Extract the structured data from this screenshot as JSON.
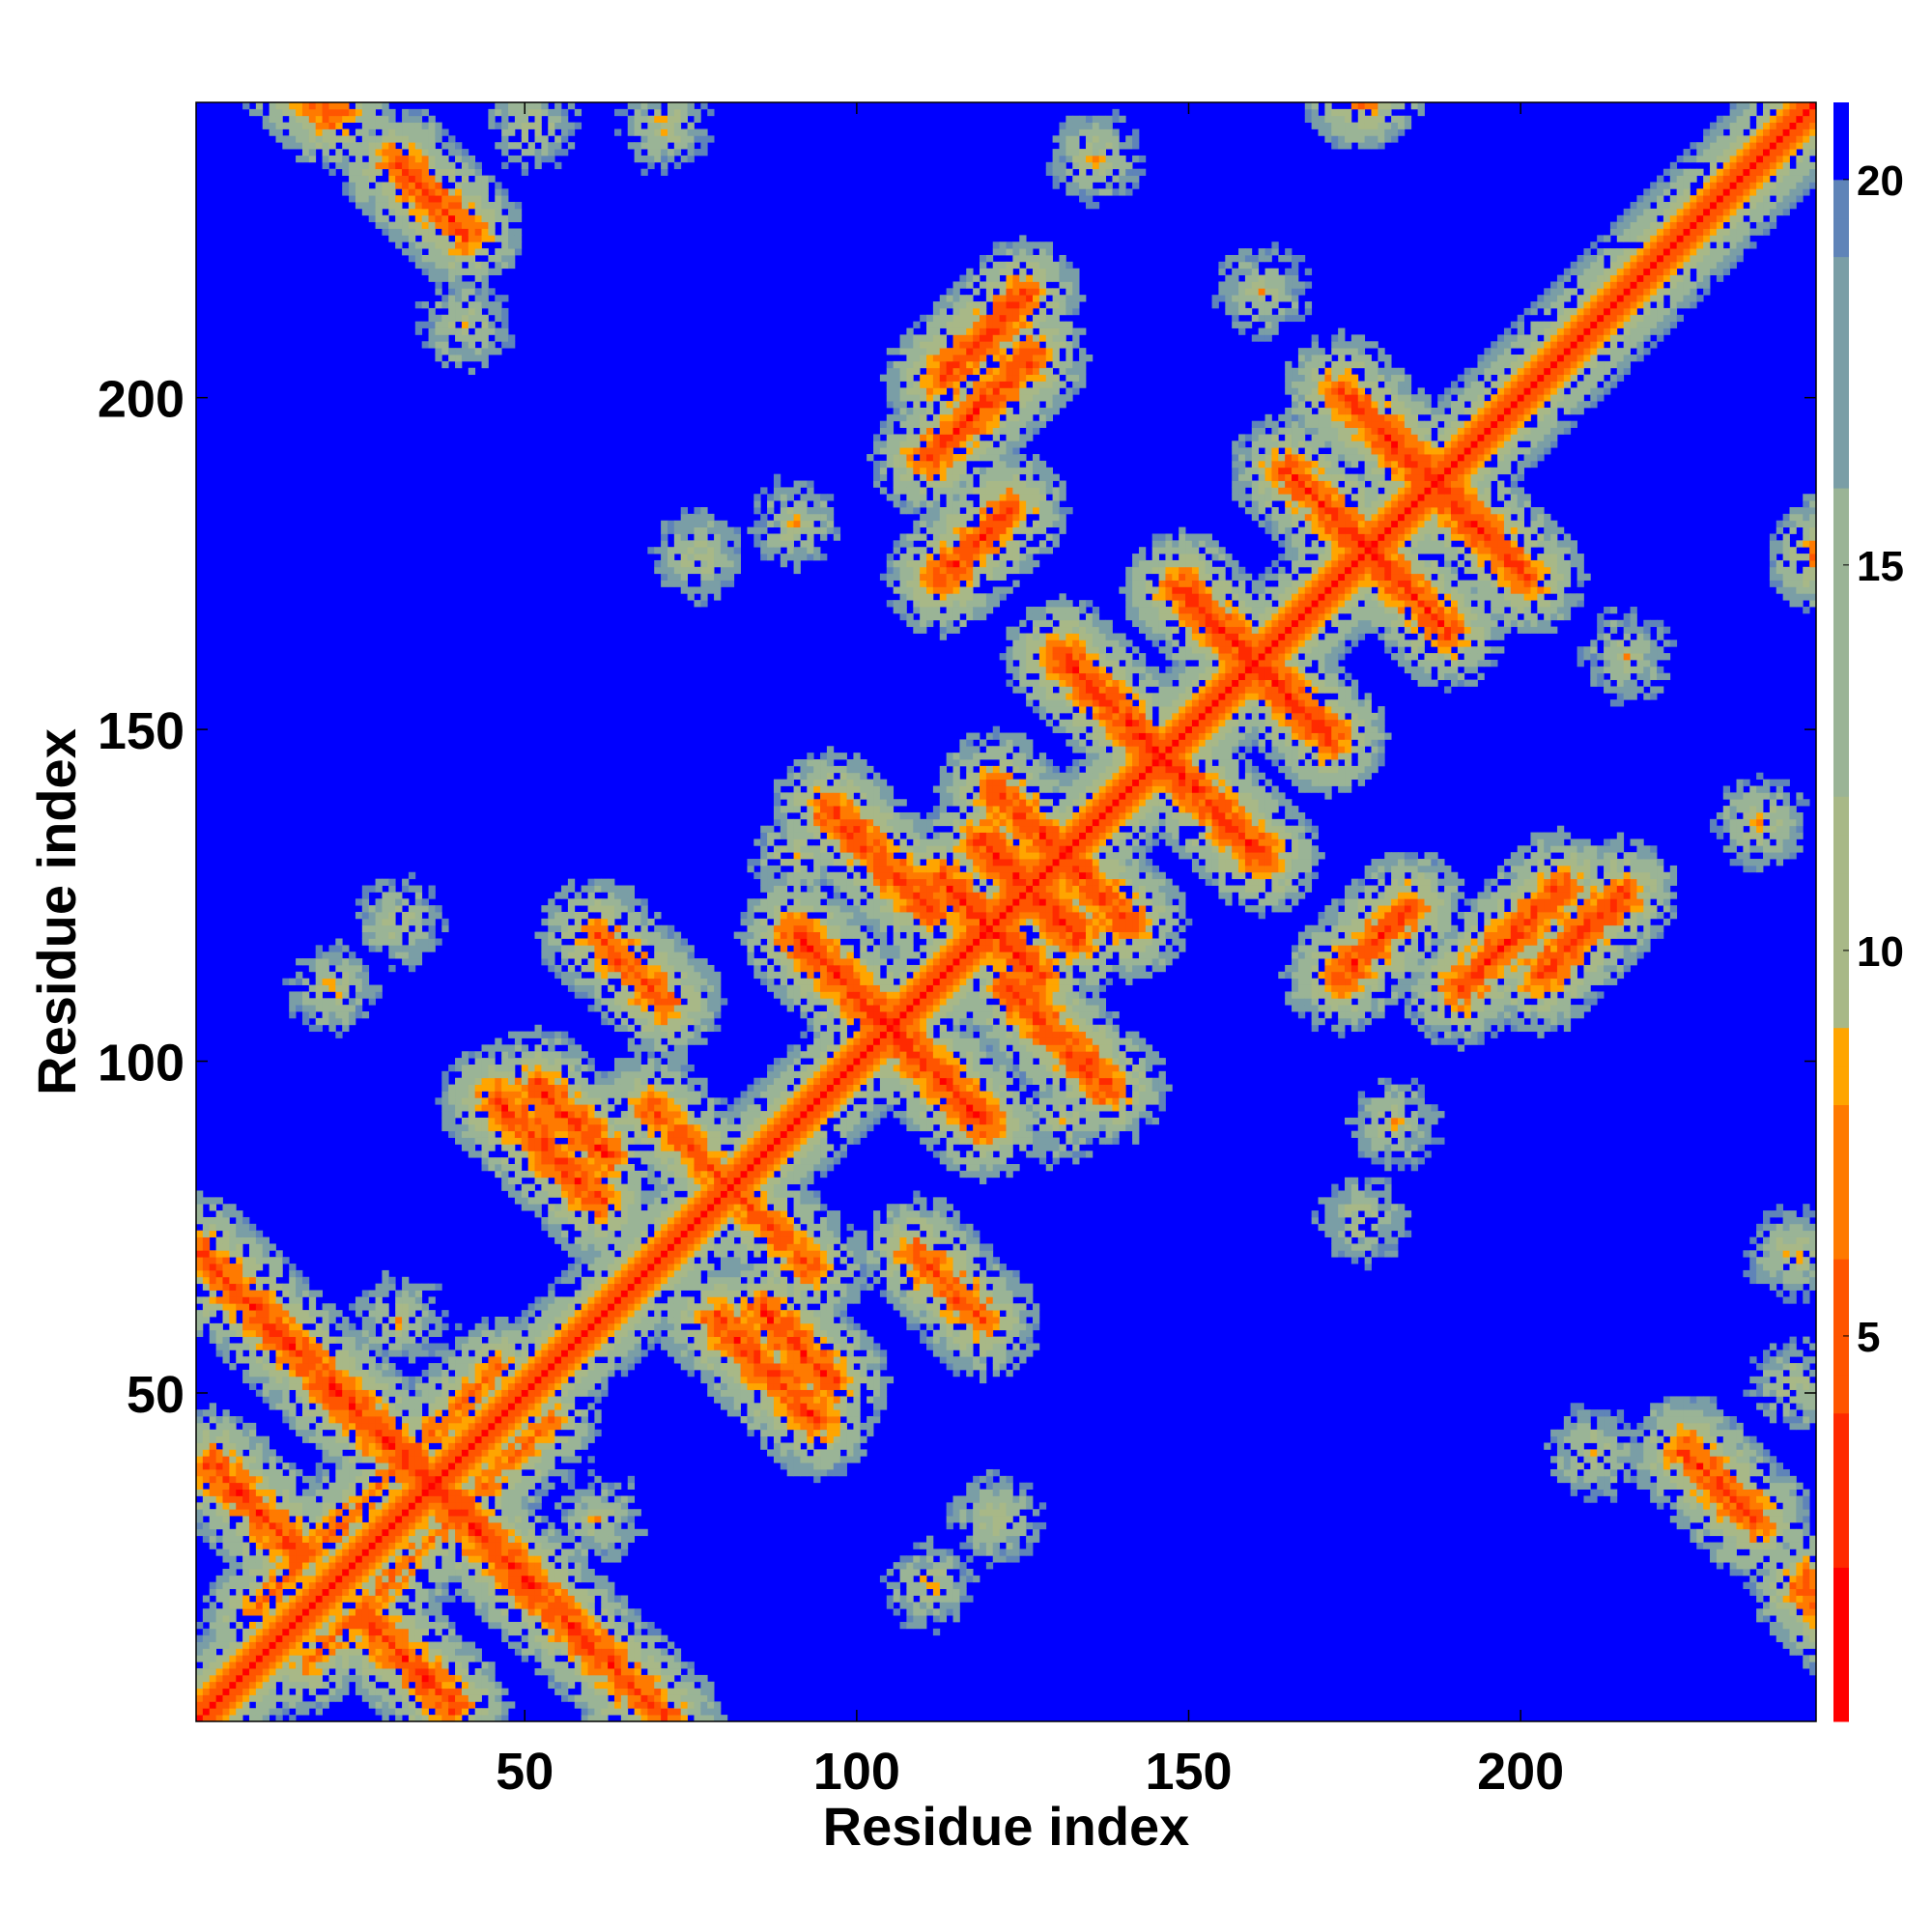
{
  "chart_data": {
    "type": "heatmap",
    "description_kind": "residue contact distance map",
    "n_residues": 244,
    "xlabel": "Residue index",
    "ylabel": "Residue index",
    "xticks": [
      50,
      100,
      150,
      200
    ],
    "yticks": [
      50,
      100,
      150,
      200
    ],
    "xlim": [
      1,
      244
    ],
    "ylim": [
      1,
      244
    ],
    "colorbar": {
      "ticks": [
        5,
        10,
        15,
        20
      ],
      "range": [
        0,
        21
      ],
      "saturate_above": 20,
      "stops": [
        {
          "value": 0,
          "color": "#ff0000"
        },
        {
          "value": 2,
          "color": "#ff2a00"
        },
        {
          "value": 4,
          "color": "#ff5500"
        },
        {
          "value": 6,
          "color": "#ff7a00"
        },
        {
          "value": 8,
          "color": "#ffa500"
        },
        {
          "value": 9,
          "color": "#a8b887"
        },
        {
          "value": 12,
          "color": "#9ab496"
        },
        {
          "value": 16,
          "color": "#7a9ea6"
        },
        {
          "value": 19,
          "color": "#5f84b8"
        },
        {
          "value": 20,
          "color": "#0000ff"
        }
      ]
    },
    "background_value": 21,
    "diagonal_value": 0,
    "bands": [
      {
        "type": "anti",
        "sum": 262,
        "from": 8,
        "to": 20,
        "min": 3.5
      },
      {
        "type": "anti",
        "sum": 264,
        "from": 30,
        "to": 40,
        "min": 3.5
      },
      {
        "type": "par",
        "diff": 8,
        "from": 8,
        "to": 45,
        "min": 6
      },
      {
        "type": "anti",
        "sum": 70,
        "from": 0,
        "to": 50,
        "min": 3.5
      },
      {
        "type": "anti",
        "sum": 40,
        "from": 25,
        "to": 38,
        "min": 3.5
      },
      {
        "type": "anti",
        "sum": 138,
        "from": 45,
        "to": 60,
        "min": 3.5
      },
      {
        "type": "anti",
        "sum": 146,
        "from": 85,
        "to": 95,
        "min": 3.5
      },
      {
        "type": "anti",
        "sum": 160,
        "from": 68,
        "to": 92,
        "min": 5
      },
      {
        "type": "anti",
        "sum": 208,
        "from": 90,
        "to": 118,
        "min": 3.5
      },
      {
        "type": "anti",
        "sum": 232,
        "from": 95,
        "to": 110,
        "min": 3.5
      },
      {
        "type": "anti",
        "sum": 238,
        "from": 112,
        "to": 126,
        "min": 3.5
      },
      {
        "type": "anti",
        "sum": 250,
        "from": 118,
        "to": 132,
        "min": 3.5
      },
      {
        "type": "anti",
        "sum": 260,
        "from": 128,
        "to": 140,
        "min": 3.5
      },
      {
        "type": "anti",
        "sum": 290,
        "from": 130,
        "to": 160,
        "min": 3.5
      },
      {
        "type": "anti",
        "sum": 318,
        "from": 148,
        "to": 170,
        "min": 3.5
      },
      {
        "type": "anti",
        "sum": 352,
        "from": 170,
        "to": 188,
        "min": 3.5
      },
      {
        "type": "anti",
        "sum": 372,
        "from": 178,
        "to": 200,
        "min": 3.5
      },
      {
        "type": "par",
        "diff": 80,
        "from": 110,
        "to": 125,
        "min": 3.5
      },
      {
        "type": "par",
        "diff": 60,
        "from": 112,
        "to": 122,
        "min": 3.5
      },
      {
        "type": "par",
        "diff": 90,
        "from": 112,
        "to": 124,
        "min": 3.5
      },
      {
        "type": "par",
        "diff": 70,
        "from": 175,
        "to": 185,
        "min": 3.5
      },
      {
        "type": "par",
        "diff": 85,
        "from": 190,
        "to": 200,
        "min": 3.5
      },
      {
        "type": "par",
        "diff": 160,
        "from": 190,
        "to": 206,
        "min": 4
      },
      {
        "type": "anti",
        "sum": 178,
        "from": 60,
        "to": 70,
        "min": 4
      }
    ],
    "blobs": [
      {
        "x": 135,
        "y": 235,
        "r": 6
      },
      {
        "x": 50,
        "y": 240,
        "r": 5
      },
      {
        "x": 30,
        "y": 60,
        "r": 6
      },
      {
        "x": 235,
        "y": 135,
        "r": 7
      },
      {
        "x": 240,
        "y": 70,
        "r": 5
      },
      {
        "x": 180,
        "y": 90,
        "r": 7
      },
      {
        "x": 120,
        "y": 30,
        "r": 6
      },
      {
        "x": 75,
        "y": 175,
        "r": 6
      },
      {
        "x": 20,
        "y": 110,
        "r": 6
      },
      {
        "x": 210,
        "y": 40,
        "r": 6
      },
      {
        "x": 160,
        "y": 215,
        "r": 5
      },
      {
        "x": 90,
        "y": 130,
        "r": 6
      }
    ]
  }
}
